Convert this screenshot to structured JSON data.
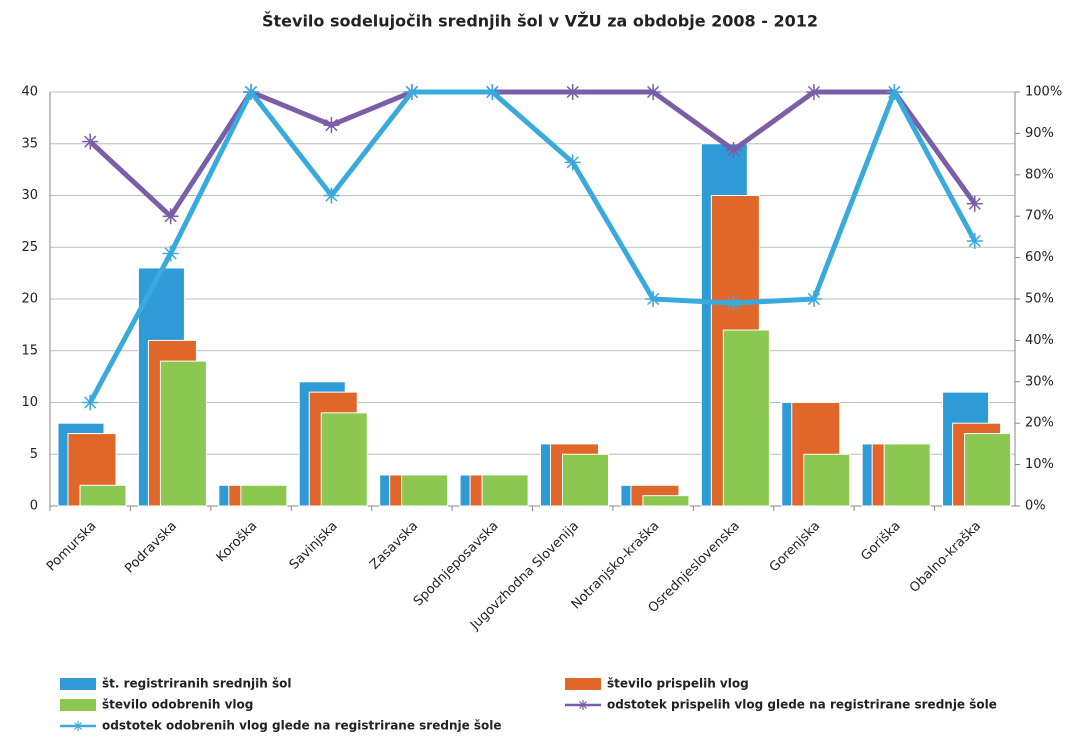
{
  "chart_data": {
    "type": "bar",
    "title": "Število sodelujočih srednjih šol v VŽU za obdobje 2008 - 2012",
    "categories": [
      "Pomurska",
      "Podravska",
      "Koroška",
      "Savinjska",
      "Zasavska",
      "Spodnjeposavska",
      "Jugovzhodna Slovenija",
      "Notranjsko-kraška",
      "Osrednjeslovenska",
      "Gorenjska",
      "Goriška",
      "Obalno-kraška"
    ],
    "series": [
      {
        "name": "št. registriranih srednjih šol",
        "color": "#2e9bd6",
        "values": [
          8,
          23,
          2,
          12,
          3,
          3,
          6,
          2,
          35,
          10,
          6,
          11
        ]
      },
      {
        "name": "število prispelih vlog",
        "color": "#e0662a",
        "values": [
          7,
          16,
          2,
          11,
          3,
          3,
          6,
          2,
          30,
          10,
          6,
          8
        ]
      },
      {
        "name": "število odobrenih vlog",
        "color": "#8cc751",
        "values": [
          2,
          14,
          2,
          9,
          3,
          3,
          5,
          1,
          17,
          5,
          6,
          7
        ]
      },
      {
        "name": "odstotek prispelih vlog glede na registrirane srednje šole",
        "color": "#7b5ea7",
        "type": "line",
        "axis": "y2",
        "values": [
          88,
          70,
          100,
          92,
          100,
          100,
          100,
          100,
          86,
          100,
          100,
          73
        ]
      },
      {
        "name": "odstotek odobrenih vlog glede na registrirane srednje šole",
        "color": "#3aa9dc",
        "type": "line",
        "axis": "y2",
        "values": [
          25,
          61,
          100,
          75,
          100,
          100,
          83,
          50,
          49,
          50,
          100,
          64
        ]
      }
    ],
    "ylim": [
      0,
      40
    ],
    "yticks": [
      0,
      5,
      10,
      15,
      20,
      25,
      30,
      35,
      40
    ],
    "y2lim": [
      0,
      100
    ],
    "y2ticks": [
      {
        "value": 0,
        "label": "0%"
      },
      {
        "value": 10,
        "label": "10%"
      },
      {
        "value": 20,
        "label": "20%"
      },
      {
        "value": 30,
        "label": "30%"
      },
      {
        "value": 40,
        "label": "40%"
      },
      {
        "value": 50,
        "label": "50%"
      },
      {
        "value": 60,
        "label": "60%"
      },
      {
        "value": 70,
        "label": "70%"
      },
      {
        "value": 80,
        "label": "80%"
      },
      {
        "value": 90,
        "label": "90%"
      },
      {
        "value": 100,
        "label": "100%"
      }
    ],
    "grid": true
  }
}
